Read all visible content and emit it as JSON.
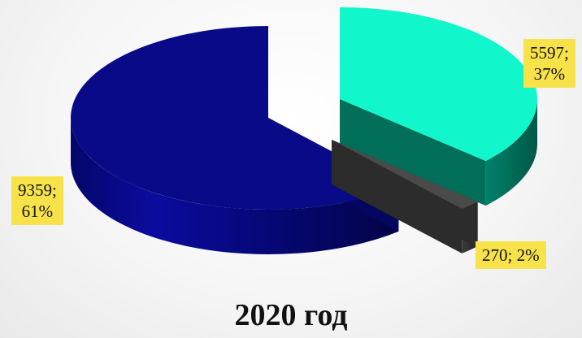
{
  "chart_data": {
    "type": "pie",
    "style": "3d-exploded",
    "title": "2020 год",
    "slices": [
      {
        "value": 5597,
        "label": "5597; 37%",
        "percent": "37%",
        "color_top": "#11f7cb",
        "color_side": "#006e59"
      },
      {
        "value": 270,
        "label": "270; 2%",
        "percent": "2%",
        "color_top": "#4a4a4a",
        "color_side": "#2c2c2c"
      },
      {
        "value": 9359,
        "label": "9359; 61%",
        "percent": "61%",
        "color_top": "#080a88",
        "color_side": "#050660"
      }
    ],
    "labels_split": [
      [
        "5597;",
        "37%"
      ],
      [
        "270; 2%"
      ],
      [
        "9359;",
        "61%"
      ]
    ]
  }
}
